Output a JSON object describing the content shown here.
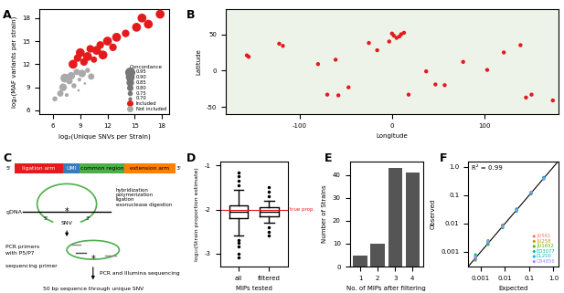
{
  "chart_data": [
    {
      "panel_label": "A",
      "type": "scatter",
      "x_label": "log₂(Unique SNVs per Strain)",
      "y_label": "log₂(MAF variants per strain)",
      "xlim": [
        4.5,
        18.8
      ],
      "ylim": [
        5.5,
        19.2
      ],
      "xticks": [
        6,
        9,
        12,
        15,
        18
      ],
      "yticks": [
        6,
        9,
        12,
        15,
        18
      ],
      "legend": "lower right",
      "legend_title": "Concordance",
      "size_levels": [
        {
          "value": 0.95,
          "label": "0.95"
        },
        {
          "value": 0.9,
          "label": "0.90"
        },
        {
          "value": 0.85,
          "label": "0.85"
        },
        {
          "value": 0.8,
          "label": "0.80"
        },
        {
          "value": 0.75,
          "label": "0.75"
        },
        {
          "value": 0.7,
          "label": "0.70"
        }
      ],
      "series": [
        {
          "name": "Included",
          "color": "#e41a1c",
          "x": [
            8.2,
            8.7,
            9.0,
            9.4,
            9.8,
            10.1,
            10.5,
            10.8,
            11.2,
            11.5,
            12.0,
            12.6,
            13.0,
            15.2,
            15.8,
            16.5,
            17.8,
            14.0
          ],
          "y": [
            12.0,
            12.8,
            13.5,
            12.3,
            13.0,
            14.0,
            12.6,
            13.8,
            14.5,
            13.2,
            15.0,
            14.2,
            15.5,
            16.8,
            18.0,
            17.2,
            18.5,
            16.0
          ],
          "concordance": [
            0.95,
            0.9,
            0.95,
            0.9,
            0.95,
            0.9,
            0.85,
            0.95,
            0.9,
            0.95,
            0.95,
            0.9,
            0.95,
            0.95,
            0.95,
            0.95,
            0.95,
            0.9
          ]
        },
        {
          "name": "Not included",
          "color": "#aaaaaa",
          "x": [
            6.2,
            6.8,
            7.1,
            7.5,
            7.8,
            8.0,
            8.3,
            8.6,
            8.9,
            9.2,
            9.5,
            9.8,
            10.2,
            7.3,
            8.8
          ],
          "y": [
            7.5,
            8.2,
            9.0,
            8.0,
            9.8,
            10.5,
            9.2,
            11.0,
            10.0,
            10.8,
            9.5,
            11.2,
            10.4,
            10.2,
            8.6
          ],
          "concordance": [
            0.8,
            0.85,
            0.9,
            0.75,
            0.85,
            0.9,
            0.8,
            0.85,
            0.75,
            0.9,
            0.7,
            0.8,
            0.85,
            0.95,
            0.7
          ]
        }
      ]
    },
    {
      "panel_label": "B",
      "type": "scatter",
      "x_label": "Longitude",
      "y_label": "Latitude",
      "xlim": [
        -180,
        180
      ],
      "ylim": [
        -60,
        85
      ],
      "xticks": [
        -100,
        0,
        100
      ],
      "yticks": [
        -50,
        0,
        50
      ],
      "color": "#e41a1c",
      "x": [
        -157,
        -155,
        -122,
        -118,
        -16,
        -25,
        2,
        10,
        13,
        -3,
        5,
        0,
        8,
        18,
        37,
        47,
        57,
        77,
        103,
        121,
        139,
        151,
        145,
        174,
        -58,
        -47,
        -70,
        -80,
        -61
      ],
      "y": [
        21,
        19,
        37,
        34,
        28,
        38,
        48,
        50,
        52,
        40,
        45,
        51,
        47,
        -33,
        -1,
        -19,
        -20,
        12,
        1,
        25,
        35,
        -33,
        -37,
        -41,
        -34,
        -23,
        -33,
        9,
        15
      ]
    },
    {
      "panel_label": "D",
      "type": "box",
      "x_label": "MIPs tested",
      "y_label": "log₁₀(Strain proportion estimate)",
      "categories": [
        "all",
        "filtered"
      ],
      "ylim": [
        -3.3,
        -0.9
      ],
      "yticks": [
        -3,
        -2,
        -1
      ],
      "boxes": [
        {
          "q1": -2.2,
          "med": -2.05,
          "q3": -1.9,
          "whislo": -2.6,
          "whishi": -1.55,
          "fliers": [
            -2.75,
            -2.85,
            -3.0,
            -3.1,
            -1.45,
            -1.35,
            -1.25,
            -1.15,
            -2.7
          ]
        },
        {
          "q1": -2.15,
          "med": -2.05,
          "q3": -1.95,
          "whislo": -2.3,
          "whishi": -1.8,
          "fliers": [
            -2.4,
            -2.5,
            -2.6,
            -1.7,
            -1.6,
            -1.5
          ]
        }
      ],
      "reference": {
        "value": -2,
        "label": "true prop.",
        "color": "#e41a1c"
      }
    },
    {
      "panel_label": "E",
      "type": "bar",
      "x_label": "No. of MIPs after filtering",
      "y_label": "Number of Strains",
      "categories": [
        "1",
        "2",
        "3",
        "4"
      ],
      "values": [
        5,
        10,
        43,
        41
      ],
      "color": "#555555",
      "ylim": [
        0,
        46
      ],
      "yticks": [
        0,
        10,
        20,
        30,
        40
      ]
    },
    {
      "panel_label": "F",
      "type": "scatter",
      "log": true,
      "x_label": "Expected",
      "y_label": "Observed",
      "annotation": "R² = 0.99",
      "legend": "lower right",
      "xlim": [
        0.0003,
        1.6
      ],
      "ylim": [
        0.0003,
        1.6
      ],
      "xticks": [
        {
          "value": 0.001,
          "label": "0.001"
        },
        {
          "value": 0.01,
          "label": "0.01"
        },
        {
          "value": 0.1,
          "label": "0.1"
        },
        {
          "value": 1,
          "label": "1.0"
        }
      ],
      "yticks": [
        {
          "value": 0.001,
          "label": "0.001"
        },
        {
          "value": 0.01,
          "label": "0.01"
        },
        {
          "value": 0.1,
          "label": "0.1"
        },
        {
          "value": 1,
          "label": "1.0"
        }
      ],
      "x": [
        0.0006,
        0.002,
        0.008,
        0.03,
        0.12,
        0.4
      ],
      "series": [
        {
          "name": "JU561",
          "color": "#f8766d",
          "values": [
            0.0007,
            0.0022,
            0.009,
            0.028,
            0.13,
            0.42
          ]
        },
        {
          "name": "JU258",
          "color": "#c49a00",
          "values": [
            0.0005,
            0.0018,
            0.0075,
            0.033,
            0.11,
            0.38
          ]
        },
        {
          "name": "JU1652",
          "color": "#53b400",
          "values": [
            0.0006,
            0.0025,
            0.0085,
            0.031,
            0.125,
            0.41
          ]
        },
        {
          "name": "ED3077",
          "color": "#00c094",
          "values": [
            0.0008,
            0.0019,
            0.007,
            0.027,
            0.115,
            0.39
          ]
        },
        {
          "name": "DL200",
          "color": "#00b6eb",
          "values": [
            0.00055,
            0.0021,
            0.0082,
            0.032,
            0.12,
            0.43
          ]
        },
        {
          "name": "CB4856",
          "color": "#a58aff",
          "values": [
            0.00065,
            0.0023,
            0.0078,
            0.029,
            0.128,
            0.37
          ]
        }
      ]
    }
  ],
  "diagram": {
    "panel_label": "C",
    "probe": {
      "five_prime": "5'",
      "three_prime": "3'",
      "segments": [
        {
          "label": "ligation arm",
          "color": "#e41a1c"
        },
        {
          "label": "UMI",
          "color": "#377eb8"
        },
        {
          "label": "common region",
          "color": "#4daf4a"
        },
        {
          "label": "extension arm",
          "color": "#ff7f00"
        }
      ]
    },
    "gdna": "gDNA",
    "snv_mark": "*",
    "snv": "SNV",
    "step1": "hybridization\npolymerization\nligation\nexonuclease digestion",
    "primers": "PCR primers\nwith P5/P7",
    "seq_primer": "sequencing primer",
    "step2": "PCR and Illumina sequencing",
    "result": "50 bp sequence through unique SNV"
  }
}
